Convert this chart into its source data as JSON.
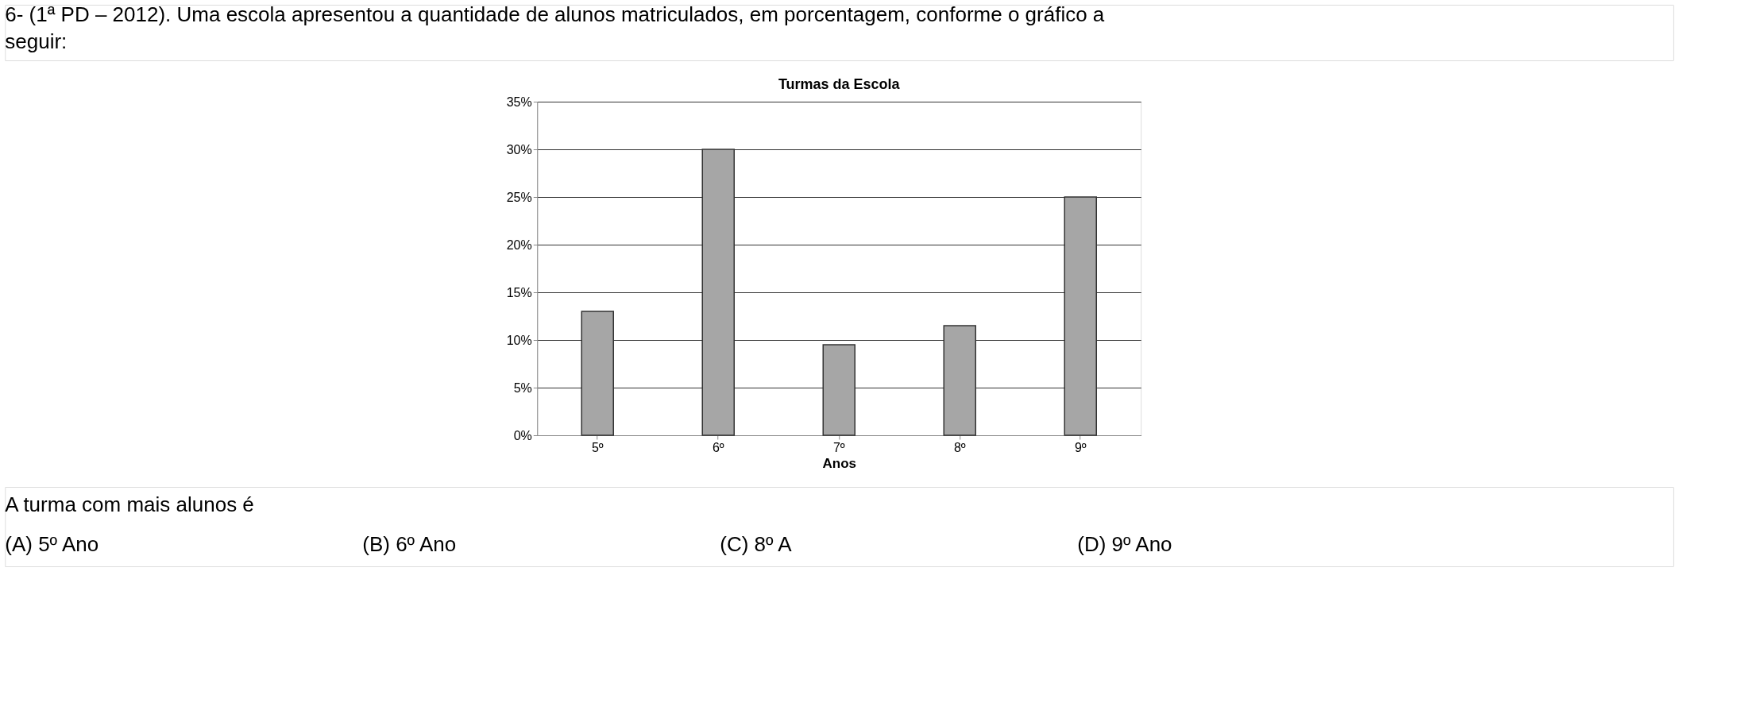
{
  "chart_data": {
    "type": "bar",
    "title": "Turmas da Escola",
    "xlabel": "Anos",
    "categories": [
      "5º",
      "6º",
      "7º",
      "8º",
      "9º"
    ],
    "values": [
      13,
      30,
      9.5,
      11.5,
      25
    ],
    "color": "#a6a6a6",
    "ylim": [
      0,
      35
    ],
    "yticks": [
      {
        "value": 0,
        "label": "0%"
      },
      {
        "value": 5,
        "label": "5%"
      },
      {
        "value": 10,
        "label": "10%"
      },
      {
        "value": 15,
        "label": "15%"
      },
      {
        "value": 20,
        "label": "20%"
      },
      {
        "value": 25,
        "label": "25%"
      },
      {
        "value": 30,
        "label": "30%"
      },
      {
        "value": 35,
        "label": "35%"
      }
    ],
    "grid": "y",
    "annotations": [
      "6- (1ª PD – 2012). Uma escola apresentou a quantidade de alunos matriculados, em porcentagem, conforme o gráfico a seguir:",
      "A turma com mais alunos é",
      "(A) 5º Ano",
      "(B) 6º Ano",
      "(C) 8º A",
      "(D) 9º Ano"
    ]
  }
}
